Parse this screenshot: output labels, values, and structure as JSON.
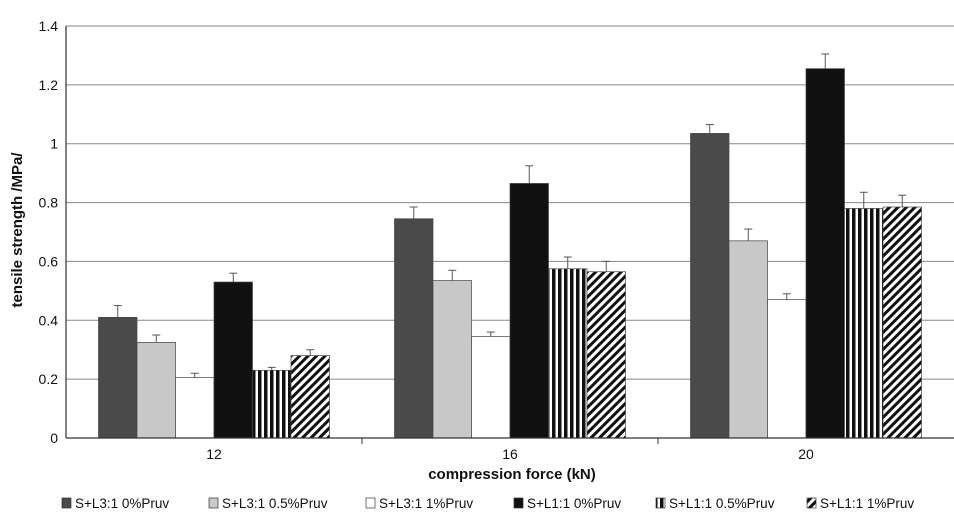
{
  "chart_data": {
    "type": "bar",
    "title": "",
    "xlabel": "compression force (kN)",
    "ylabel": "tensile strength /MPa/",
    "ylim": [
      0,
      1.4
    ],
    "yticks": [
      "0",
      "0.2",
      "0.4",
      "0.6",
      "0.8",
      "1",
      "1.2",
      "1.4"
    ],
    "ytick_values": [
      0,
      0.2,
      0.4,
      0.6,
      0.8,
      1.0,
      1.2,
      1.4
    ],
    "categories": [
      "12",
      "16",
      "20"
    ],
    "grid": true,
    "legend_position": "bottom",
    "series": [
      {
        "name": "S+L3:1 0%Pruv",
        "values": [
          0.41,
          0.745,
          1.035
        ],
        "errors": [
          0.04,
          0.04,
          0.03
        ],
        "color": "#4a4a4a",
        "pattern": "solid"
      },
      {
        "name": "S+L3:1 0.5%Pruv",
        "values": [
          0.325,
          0.535,
          0.67
        ],
        "errors": [
          0.025,
          0.035,
          0.04
        ],
        "color": "#c8c8c8",
        "pattern": "solid"
      },
      {
        "name": "S+L3:1 1%Pruv",
        "values": [
          0.205,
          0.345,
          0.47
        ],
        "errors": [
          0.015,
          0.015,
          0.02
        ],
        "color": "#ffffff",
        "pattern": "solid"
      },
      {
        "name": "S+L1:1 0%Pruv",
        "values": [
          0.53,
          0.865,
          1.255
        ],
        "errors": [
          0.03,
          0.06,
          0.05
        ],
        "color": "#111111",
        "pattern": "solid"
      },
      {
        "name": "S+L1:1 0.5%Pruv",
        "values": [
          0.23,
          0.575,
          0.78
        ],
        "errors": [
          0.01,
          0.04,
          0.055
        ],
        "color": "#111111",
        "pattern": "vertical-stripes"
      },
      {
        "name": "S+L1:1 1%Pruv",
        "values": [
          0.28,
          0.565,
          0.785
        ],
        "errors": [
          0.02,
          0.035,
          0.04
        ],
        "color": "#111111",
        "pattern": "diagonal-stripes"
      }
    ]
  }
}
